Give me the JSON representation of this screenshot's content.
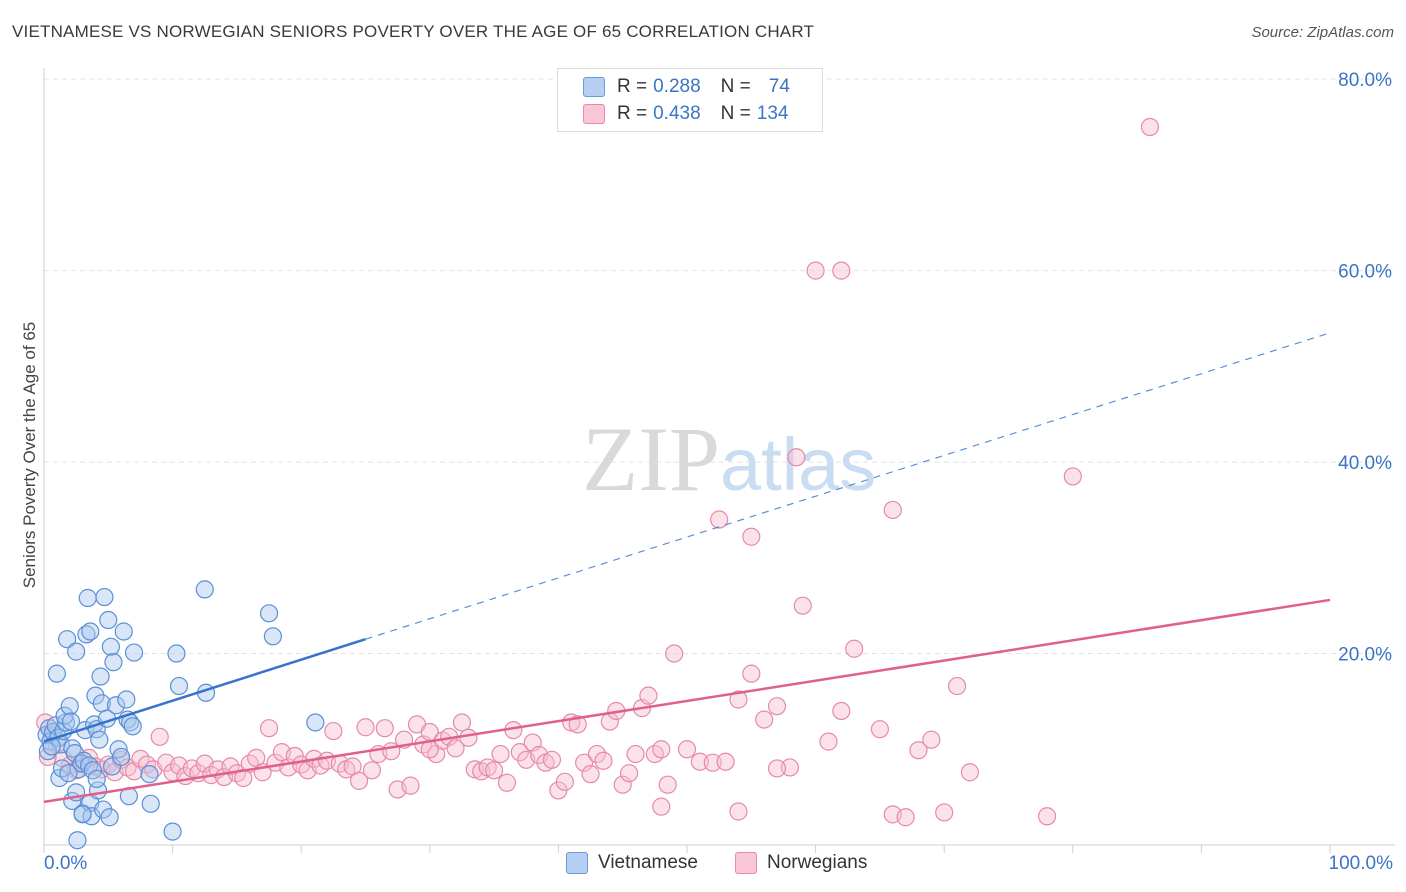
{
  "title": "VIETNAMESE VS NORWEGIAN SENIORS POVERTY OVER THE AGE OF 65 CORRELATION CHART",
  "source": "Source: ZipAtlas.com",
  "watermark": {
    "zip": "ZIP",
    "atlas": "atlas"
  },
  "legend": {
    "rows": [
      {
        "r_label": "R =",
        "r_value": "0.288",
        "n_label": "N =",
        "n_value": "74"
      },
      {
        "r_label": "R =",
        "r_value": "0.438",
        "n_label": "N =",
        "n_value": "134"
      }
    ]
  },
  "colors": {
    "vietnamese_fill": "#a9c8f0",
    "vietnamese_stroke": "#5b8fd6",
    "vietnamese_line": "#3574cc",
    "norwegian_fill": "#f7bfd1",
    "norwegian_stroke": "#e58aa8",
    "norwegian_line": "#e0608a",
    "tick_label": "#3b74c4",
    "grid": "#e4e4e4"
  },
  "chart_data": {
    "type": "scatter",
    "title": "VIETNAMESE VS NORWEGIAN SENIORS POVERTY OVER THE AGE OF 65 CORRELATION CHART",
    "xlabel": "",
    "ylabel": "Seniors Poverty Over the Age of 65",
    "xlim": [
      0,
      100
    ],
    "ylim": [
      0,
      82
    ],
    "x_tick_labels": [
      "0.0%",
      "100.0%"
    ],
    "y_ticks": [
      20,
      40,
      60,
      80
    ],
    "y_tick_labels": [
      "20.0%",
      "40.0%",
      "60.0%",
      "80.0%"
    ],
    "grid": true,
    "legend_placement": "bottom-center",
    "series": [
      {
        "name": "Vietnamese",
        "r": 0.288,
        "n": 74,
        "trend": {
          "x": [
            0,
            25
          ],
          "y": [
            10.8,
            21.5
          ],
          "dashed_extension_to": [
            100,
            53.5
          ]
        },
        "points": [
          [
            0.2,
            11.5
          ],
          [
            0.4,
            12.2
          ],
          [
            0.5,
            10.8
          ],
          [
            0.7,
            11.8
          ],
          [
            0.9,
            12.5
          ],
          [
            1.1,
            11.2
          ],
          [
            1.3,
            10.5
          ],
          [
            1.5,
            11.9
          ],
          [
            1.7,
            12.8
          ],
          [
            0.3,
            9.8
          ],
          [
            1.0,
            17.9
          ],
          [
            1.2,
            7.0
          ],
          [
            1.4,
            8.0
          ],
          [
            1.6,
            13.5
          ],
          [
            1.8,
            21.5
          ],
          [
            2.0,
            14.5
          ],
          [
            2.1,
            12.9
          ],
          [
            2.2,
            10.1
          ],
          [
            2.4,
            9.6
          ],
          [
            2.5,
            20.2
          ],
          [
            2.7,
            7.9
          ],
          [
            2.9,
            8.5
          ],
          [
            3.1,
            8.8
          ],
          [
            3.2,
            12.0
          ],
          [
            3.3,
            22.0
          ],
          [
            3.4,
            25.8
          ],
          [
            3.5,
            8.3
          ],
          [
            3.6,
            22.3
          ],
          [
            3.8,
            7.8
          ],
          [
            3.9,
            12.6
          ],
          [
            4.0,
            15.6
          ],
          [
            4.1,
            12.1
          ],
          [
            4.3,
            11.0
          ],
          [
            4.4,
            17.6
          ],
          [
            4.5,
            14.8
          ],
          [
            4.7,
            25.9
          ],
          [
            4.9,
            13.2
          ],
          [
            5.0,
            23.5
          ],
          [
            5.2,
            20.7
          ],
          [
            5.3,
            8.2
          ],
          [
            5.4,
            19.1
          ],
          [
            5.6,
            14.6
          ],
          [
            5.8,
            10.0
          ],
          [
            6.0,
            9.2
          ],
          [
            6.2,
            22.3
          ],
          [
            6.4,
            15.2
          ],
          [
            6.5,
            13.1
          ],
          [
            6.7,
            12.8
          ],
          [
            7.0,
            20.1
          ],
          [
            8.2,
            7.4
          ],
          [
            10.3,
            20.0
          ],
          [
            10.5,
            16.6
          ],
          [
            12.5,
            26.7
          ],
          [
            12.6,
            15.9
          ],
          [
            17.5,
            24.2
          ],
          [
            17.8,
            21.8
          ],
          [
            21.1,
            12.8
          ],
          [
            2.2,
            4.6
          ],
          [
            2.5,
            5.5
          ],
          [
            3.0,
            3.3
          ],
          [
            3.6,
            4.4
          ],
          [
            3.7,
            3.0
          ],
          [
            4.2,
            5.7
          ],
          [
            4.6,
            3.7
          ],
          [
            5.1,
            2.9
          ],
          [
            6.6,
            5.1
          ],
          [
            8.3,
            4.3
          ],
          [
            10.0,
            1.4
          ],
          [
            2.6,
            0.5
          ],
          [
            3.0,
            3.2
          ],
          [
            1.9,
            7.5
          ],
          [
            4.1,
            6.9
          ],
          [
            6.9,
            12.4
          ],
          [
            0.6,
            10.3
          ]
        ]
      },
      {
        "name": "Norwegians",
        "r": 0.438,
        "n": 134,
        "trend": {
          "x": [
            0,
            100
          ],
          "y": [
            4.5,
            25.6
          ]
        },
        "points": [
          [
            0.1,
            12.8
          ],
          [
            0.3,
            9.2
          ],
          [
            0.6,
            11.4
          ],
          [
            1.0,
            10.5
          ],
          [
            1.5,
            9.0
          ],
          [
            2.0,
            8.3
          ],
          [
            2.5,
            7.8
          ],
          [
            3.0,
            8.6
          ],
          [
            3.5,
            9.1
          ],
          [
            4.0,
            8.2
          ],
          [
            4.5,
            7.9
          ],
          [
            5.0,
            8.4
          ],
          [
            5.5,
            7.6
          ],
          [
            6.0,
            8.9
          ],
          [
            6.5,
            8.1
          ],
          [
            7.0,
            7.7
          ],
          [
            7.5,
            9.0
          ],
          [
            8.0,
            8.4
          ],
          [
            8.5,
            7.9
          ],
          [
            9.0,
            11.3
          ],
          [
            9.5,
            8.6
          ],
          [
            10.0,
            7.6
          ],
          [
            10.5,
            8.3
          ],
          [
            11.0,
            7.2
          ],
          [
            11.5,
            8.0
          ],
          [
            12.0,
            7.5
          ],
          [
            12.5,
            8.5
          ],
          [
            13.0,
            7.3
          ],
          [
            13.5,
            7.9
          ],
          [
            14.0,
            7.1
          ],
          [
            14.5,
            8.2
          ],
          [
            15.0,
            7.5
          ],
          [
            15.5,
            7.0
          ],
          [
            16.0,
            8.5
          ],
          [
            16.5,
            9.1
          ],
          [
            17.0,
            7.6
          ],
          [
            17.5,
            12.2
          ],
          [
            18.0,
            8.6
          ],
          [
            18.5,
            9.7
          ],
          [
            19.0,
            8.1
          ],
          [
            19.5,
            9.3
          ],
          [
            20.0,
            8.4
          ],
          [
            20.5,
            7.8
          ],
          [
            21.0,
            9.0
          ],
          [
            21.5,
            8.3
          ],
          [
            22.0,
            8.8
          ],
          [
            22.5,
            11.9
          ],
          [
            23.0,
            8.5
          ],
          [
            23.5,
            7.9
          ],
          [
            24.0,
            8.2
          ],
          [
            24.5,
            6.7
          ],
          [
            25.0,
            12.3
          ],
          [
            25.5,
            7.8
          ],
          [
            26.0,
            9.5
          ],
          [
            26.5,
            12.2
          ],
          [
            27.0,
            9.8
          ],
          [
            27.5,
            5.8
          ],
          [
            28.0,
            11.0
          ],
          [
            28.5,
            6.2
          ],
          [
            29.0,
            12.6
          ],
          [
            29.5,
            10.5
          ],
          [
            30.0,
            11.8
          ],
          [
            30.5,
            9.5
          ],
          [
            31.0,
            10.9
          ],
          [
            31.5,
            11.3
          ],
          [
            32.0,
            10.1
          ],
          [
            32.5,
            12.8
          ],
          [
            33.0,
            11.2
          ],
          [
            33.5,
            7.9
          ],
          [
            34.0,
            7.7
          ],
          [
            34.5,
            8.1
          ],
          [
            35.0,
            7.8
          ],
          [
            35.5,
            9.5
          ],
          [
            36.0,
            6.5
          ],
          [
            36.5,
            12.0
          ],
          [
            37.0,
            9.7
          ],
          [
            37.5,
            8.9
          ],
          [
            38.0,
            10.7
          ],
          [
            38.5,
            9.4
          ],
          [
            39.0,
            8.6
          ],
          [
            39.5,
            8.9
          ],
          [
            40.0,
            5.7
          ],
          [
            40.5,
            6.6
          ],
          [
            41.0,
            12.8
          ],
          [
            41.5,
            12.6
          ],
          [
            42.0,
            8.6
          ],
          [
            42.5,
            7.4
          ],
          [
            43.0,
            9.5
          ],
          [
            43.5,
            8.8
          ],
          [
            44.0,
            12.9
          ],
          [
            44.5,
            14.0
          ],
          [
            45.0,
            6.3
          ],
          [
            45.5,
            7.5
          ],
          [
            46.0,
            9.5
          ],
          [
            46.5,
            14.3
          ],
          [
            47.0,
            15.6
          ],
          [
            47.5,
            9.5
          ],
          [
            48.0,
            10.0
          ],
          [
            48.5,
            6.3
          ],
          [
            49.0,
            20.0
          ],
          [
            50.0,
            10.0
          ],
          [
            51.0,
            8.7
          ],
          [
            52.0,
            8.6
          ],
          [
            53.0,
            8.7
          ],
          [
            54.0,
            15.2
          ],
          [
            55.0,
            17.9
          ],
          [
            56.0,
            13.1
          ],
          [
            57.0,
            14.5
          ],
          [
            58.0,
            8.1
          ],
          [
            59.0,
            25.0
          ],
          [
            61.0,
            10.8
          ],
          [
            62.0,
            14.0
          ],
          [
            63.0,
            20.5
          ],
          [
            65.0,
            12.1
          ],
          [
            66.0,
            3.2
          ],
          [
            67.0,
            2.9
          ],
          [
            68.0,
            9.9
          ],
          [
            69.0,
            11.0
          ],
          [
            70.0,
            3.4
          ],
          [
            71.0,
            16.6
          ],
          [
            72.0,
            7.6
          ],
          [
            78.0,
            3.0
          ],
          [
            52.5,
            34.0
          ],
          [
            55.0,
            32.2
          ],
          [
            60.0,
            60.0
          ],
          [
            62.0,
            60.0
          ],
          [
            66.0,
            35.0
          ],
          [
            58.5,
            40.5
          ],
          [
            80.0,
            38.5
          ],
          [
            86.0,
            75.0
          ],
          [
            48.0,
            4.0
          ],
          [
            54.0,
            3.5
          ],
          [
            57.0,
            8.0
          ],
          [
            30.0,
            10.0
          ]
        ]
      }
    ]
  }
}
